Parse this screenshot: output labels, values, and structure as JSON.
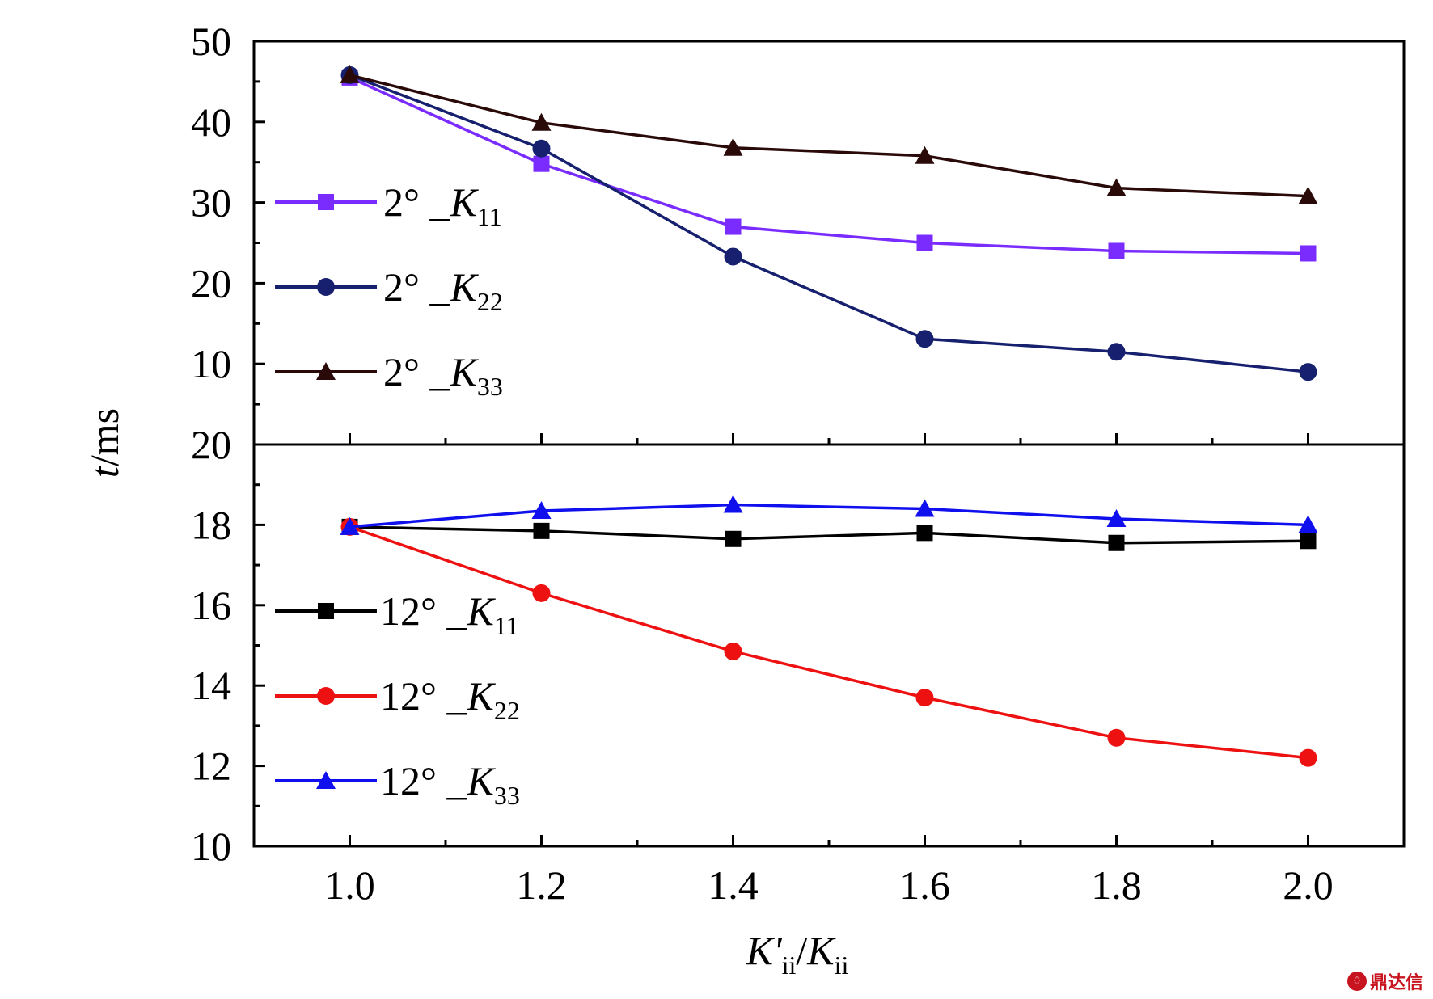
{
  "chart_data": [
    {
      "type": "line",
      "panel": "top",
      "x": [
        1.0,
        1.2,
        1.4,
        1.6,
        1.8,
        2.0
      ],
      "ylim": [
        0,
        50
      ],
      "yticks": [
        "50",
        "40",
        "30",
        "20",
        "10"
      ],
      "ylabel": "t/ms",
      "grid": false,
      "legend_position": "left",
      "series": [
        {
          "name": "2° _K11",
          "label_main": "2° _K",
          "label_sub": "11",
          "color": "#7a2cff",
          "marker": "square",
          "values": [
            45.5,
            34.8,
            27.0,
            25.0,
            24.0,
            23.7
          ]
        },
        {
          "name": "2° _K22",
          "label_main": "2° _K",
          "label_sub": "22",
          "color": "#16206e",
          "marker": "circle",
          "values": [
            45.8,
            36.7,
            23.3,
            13.1,
            11.5,
            9.0
          ]
        },
        {
          "name": "2° _K33",
          "label_main": "2° _K",
          "label_sub": "33",
          "color": "#2a0a08",
          "marker": "triangle",
          "values": [
            45.8,
            39.9,
            36.8,
            35.8,
            31.8,
            30.8
          ]
        }
      ]
    },
    {
      "type": "line",
      "panel": "bottom",
      "x": [
        1.0,
        1.2,
        1.4,
        1.6,
        1.8,
        2.0
      ],
      "ylim": [
        10,
        20
      ],
      "yticks": [
        "20",
        "18",
        "16",
        "14",
        "12",
        "10"
      ],
      "xlabel": "K'ii/Kii",
      "xticks": [
        "1.0",
        "1.2",
        "1.4",
        "1.6",
        "1.8",
        "2.0"
      ],
      "grid": false,
      "legend_position": "left",
      "series": [
        {
          "name": "12° _K11",
          "label_main": "12° _K",
          "label_sub": "11",
          "color": "#000000",
          "marker": "square",
          "values": [
            17.95,
            17.85,
            17.65,
            17.8,
            17.55,
            17.6
          ]
        },
        {
          "name": "12° _K22",
          "label_main": "12° _K",
          "label_sub": "22",
          "color": "#ee1111",
          "marker": "circle",
          "values": [
            17.95,
            16.3,
            14.85,
            13.7,
            12.7,
            12.2
          ]
        },
        {
          "name": "12° _K33",
          "label_main": "12° _K",
          "label_sub": "33",
          "color": "#1010ee",
          "marker": "triangle",
          "values": [
            17.95,
            18.35,
            18.5,
            18.4,
            18.15,
            18.0
          ]
        }
      ]
    }
  ],
  "watermark": {
    "text": "鼎达信"
  }
}
